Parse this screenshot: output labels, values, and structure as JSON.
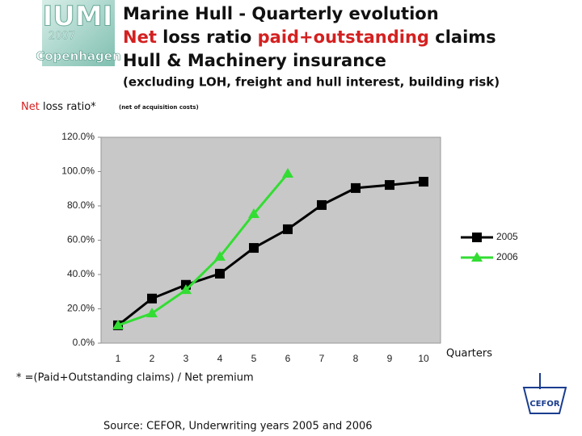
{
  "chart_data": {
    "type": "line",
    "title_lines": [
      {
        "parts": [
          "Marine Hull - Quarterly evolution"
        ],
        "colors": [
          "#111111"
        ]
      },
      {
        "parts": [
          "Net",
          "loss ratio",
          "paid+outstanding",
          "claims"
        ],
        "colors": [
          "#d42020",
          "#111111",
          "#d42020",
          "#111111"
        ]
      },
      {
        "parts": [
          "Hull & Machinery insurance"
        ],
        "colors": [
          "#111111"
        ]
      }
    ],
    "subtitle": "(excluding LOH, freight and hull interest, building risk)",
    "y_label": {
      "parts": [
        "Net",
        "loss ratio*"
      ],
      "colors": [
        "#d42020",
        "#111111"
      ]
    },
    "y_label_note": "(net of acquisition costs)",
    "x_label": "Quarters",
    "footnote": "* =(Paid+Outstanding claims) / Net premium",
    "source": "Source: CEFOR, Underwriting years 2005 and 2006",
    "logos": {
      "iumi": "IUMI",
      "year": "2007",
      "city": "Copenhagen",
      "cefor": "CEFOR"
    },
    "categories": [
      "1",
      "2",
      "3",
      "4",
      "5",
      "6",
      "7",
      "8",
      "9",
      "10"
    ],
    "series": [
      {
        "name": "2005",
        "color": "#000000",
        "marker": "square",
        "values": [
          10.4,
          26,
          34,
          40.5,
          55.5,
          66.4,
          80.5,
          90.4,
          92.2,
          94.1
        ]
      },
      {
        "name": "2006",
        "color": "#33dd33",
        "marker": "triangle",
        "values": [
          10.4,
          17.4,
          31,
          50.4,
          75.3,
          98.8,
          null,
          null,
          null,
          null
        ]
      }
    ],
    "ylim": [
      0,
      120
    ],
    "yticks": [
      {
        "value": 0,
        "label": "0.0%"
      },
      {
        "value": 20,
        "label": "20.0%"
      },
      {
        "value": 40,
        "label": "40.0%"
      },
      {
        "value": 60,
        "label": "60.0%"
      },
      {
        "value": 80,
        "label": "80.0%"
      },
      {
        "value": 100,
        "label": "100.0%"
      },
      {
        "value": 120,
        "label": "120.0%"
      }
    ],
    "grid": false,
    "legend": "right",
    "plot_background": "#c8c8c8"
  }
}
